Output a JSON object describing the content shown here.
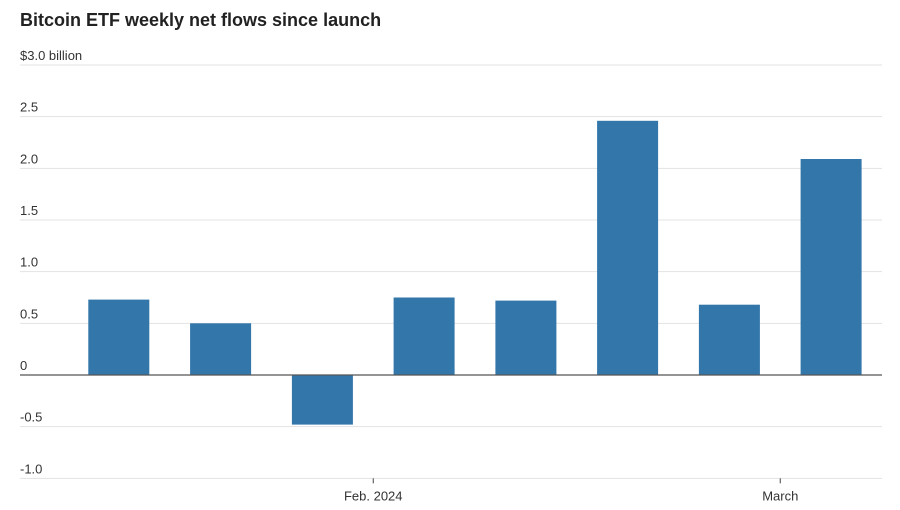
{
  "chart_data": {
    "type": "bar",
    "title": "Bitcoin ETF weekly net flows since launch",
    "xlabel": "",
    "ylabel": "",
    "y_top_label": "$3.0 billion",
    "y_ticks": [
      {
        "value": 2.5,
        "label": "2.5"
      },
      {
        "value": 2.0,
        "label": "2.0"
      },
      {
        "value": 1.5,
        "label": "1.5"
      },
      {
        "value": 1.0,
        "label": "1.0"
      },
      {
        "value": 0.5,
        "label": "0.5"
      },
      {
        "value": 0,
        "label": "0"
      },
      {
        "value": -0.5,
        "label": "-0.5"
      },
      {
        "value": -1.0,
        "label": "-1.0"
      }
    ],
    "ylim": [
      -1.0,
      3.0
    ],
    "grid": true,
    "legend": "none",
    "values": [
      0.73,
      0.5,
      -0.48,
      0.75,
      0.72,
      2.46,
      0.68,
      2.09
    ],
    "x_ticks": [
      {
        "label": "Feb. 2024",
        "after_bar": 3
      },
      {
        "label": "March",
        "after_bar": 7
      }
    ],
    "bar_color": "#3276aa",
    "grid_color": "#e3e3e3",
    "zero_line_color": "#555555"
  }
}
